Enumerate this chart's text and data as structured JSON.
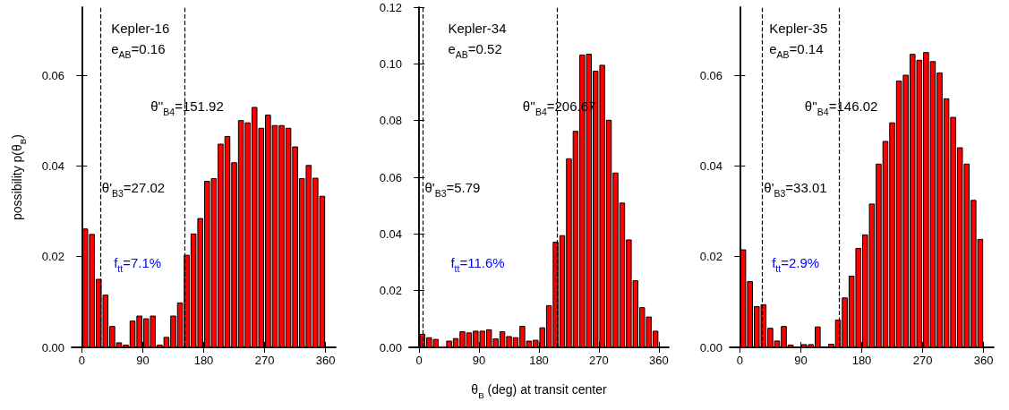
{
  "chart_data": [
    {
      "type": "histogram",
      "bins": [
        0,
        10,
        20,
        30,
        40,
        50,
        60,
        70,
        80,
        90,
        100,
        110,
        120,
        130,
        140,
        150,
        160,
        170,
        180,
        190,
        200,
        210,
        220,
        230,
        240,
        250,
        260,
        270,
        280,
        290,
        300,
        310,
        320,
        330,
        340,
        350,
        360
      ],
      "values": [
        0.0261,
        0.0249,
        0.015,
        0.0115,
        0.0046,
        0.001,
        0.0005,
        0.0058,
        0.0069,
        0.0063,
        0.0069,
        0.0005,
        0.0022,
        0.0069,
        0.0098,
        0.0203,
        0.025,
        0.0284,
        0.0366,
        0.0372,
        0.0448,
        0.0465,
        0.0407,
        0.05,
        0.0495,
        0.0529,
        0.0483,
        0.0512,
        0.0489,
        0.0489,
        0.0483,
        0.0442,
        0.0372,
        0.0401,
        0.0373,
        0.0333
      ],
      "color": "#ff0000",
      "xlim": [
        -15,
        375
      ],
      "xticks": [
        0,
        90,
        180,
        270,
        360
      ],
      "ylim": [
        0,
        0.075
      ],
      "yticks": [
        {
          "value": 0,
          "label": "0.00"
        },
        {
          "value": 0.02,
          "label": "0.02"
        },
        {
          "value": 0.04,
          "label": "0.04"
        },
        {
          "value": 0.06,
          "label": "0.06"
        }
      ],
      "ylabel": "possibility p(θ$_{B}$)",
      "ref_lines": [
        {
          "axis": "x",
          "value": 27.02,
          "label": "θ'$_{B3}$=27.02",
          "line_style": "dashed"
        },
        {
          "axis": "x",
          "value": 151.92,
          "label": "θ''$_{B4}$=151.92",
          "line_style": "dashed"
        }
      ],
      "annotations": [
        "Kepler-16",
        "e$_{AB}$=0.16",
        "f$_{tt}$=7.1%"
      ]
    },
    {
      "type": "histogram",
      "bins": [
        0,
        10,
        20,
        30,
        40,
        50,
        60,
        70,
        80,
        90,
        100,
        110,
        120,
        130,
        140,
        150,
        160,
        170,
        180,
        190,
        200,
        210,
        220,
        230,
        240,
        250,
        260,
        270,
        280,
        290,
        300,
        310,
        320,
        330,
        340,
        350,
        360
      ],
      "values": [
        0.0046,
        0.0034,
        0.0028,
        0.0004,
        0.0022,
        0.0031,
        0.0055,
        0.0051,
        0.0057,
        0.0057,
        0.0062,
        0.003,
        0.0055,
        0.0038,
        0.0034,
        0.0074,
        0.0022,
        0.0025,
        0.0069,
        0.0147,
        0.0371,
        0.0394,
        0.0665,
        0.0762,
        0.1031,
        0.1034,
        0.0974,
        0.0995,
        0.0801,
        0.0615,
        0.0509,
        0.0379,
        0.0235,
        0.014,
        0.0107,
        0.0057
      ],
      "color": "#ff0000",
      "xlim": [
        -15,
        375
      ],
      "xticks": [
        0,
        90,
        180,
        270,
        360
      ],
      "ylim": [
        0,
        0.12
      ],
      "yticks": [
        {
          "value": 0,
          "label": "0.00"
        },
        {
          "value": 0.02,
          "label": "0.02"
        },
        {
          "value": 0.04,
          "label": "0.04"
        },
        {
          "value": 0.06,
          "label": "0.06"
        },
        {
          "value": 0.08,
          "label": "0.08"
        },
        {
          "value": 0.1,
          "label": "0.10"
        },
        {
          "value": 0.12,
          "label": "0.12"
        }
      ],
      "xlabel": "θ$_{B}$ (deg) at transit center",
      "ref_lines": [
        {
          "axis": "x",
          "value": 5.79,
          "label": "θ'$_{B3}$=5.79",
          "line_style": "dashed"
        },
        {
          "axis": "x",
          "value": 206.67,
          "label": "θ''$_{B4}$=206.67",
          "line_style": "dashed"
        }
      ],
      "annotations": [
        "Kepler-34",
        "e$_{AB}$=0.52",
        "f$_{tt}$=11.6%"
      ]
    },
    {
      "type": "histogram",
      "bins": [
        0,
        10,
        20,
        30,
        40,
        50,
        60,
        70,
        80,
        90,
        100,
        110,
        120,
        130,
        140,
        150,
        160,
        170,
        180,
        190,
        200,
        210,
        220,
        230,
        240,
        250,
        260,
        270,
        280,
        290,
        300,
        310,
        320,
        330,
        340,
        350,
        360
      ],
      "values": [
        0.0215,
        0.0145,
        0.009,
        0.0094,
        0.0042,
        0.0014,
        0.0046,
        0.0005,
        0,
        0.0006,
        0.0006,
        0.0045,
        0,
        0.0007,
        0.006,
        0.0109,
        0.0157,
        0.0218,
        0.0248,
        0.0316,
        0.0404,
        0.0454,
        0.0495,
        0.0587,
        0.06,
        0.0646,
        0.0633,
        0.065,
        0.063,
        0.0605,
        0.0548,
        0.0507,
        0.044,
        0.0404,
        0.0324,
        0.0238
      ],
      "color": "#ff0000",
      "xlim": [
        -15,
        375
      ],
      "xticks": [
        0,
        90,
        180,
        270,
        360
      ],
      "ylim": [
        0,
        0.075
      ],
      "yticks": [
        {
          "value": 0,
          "label": "0.00"
        },
        {
          "value": 0.02,
          "label": "0.02"
        },
        {
          "value": 0.04,
          "label": "0.04"
        },
        {
          "value": 0.06,
          "label": "0.06"
        }
      ],
      "ref_lines": [
        {
          "axis": "x",
          "value": 33.01,
          "label": "θ'$_{B3}$=33.01",
          "line_style": "dashed"
        },
        {
          "axis": "x",
          "value": 146.02,
          "label": "θ''$_{B4}$=146.02",
          "line_style": "dashed"
        }
      ],
      "annotations": [
        "Kepler-35",
        "e$_{AB}$=0.14",
        "f$_{tt}$=2.9%"
      ]
    }
  ]
}
